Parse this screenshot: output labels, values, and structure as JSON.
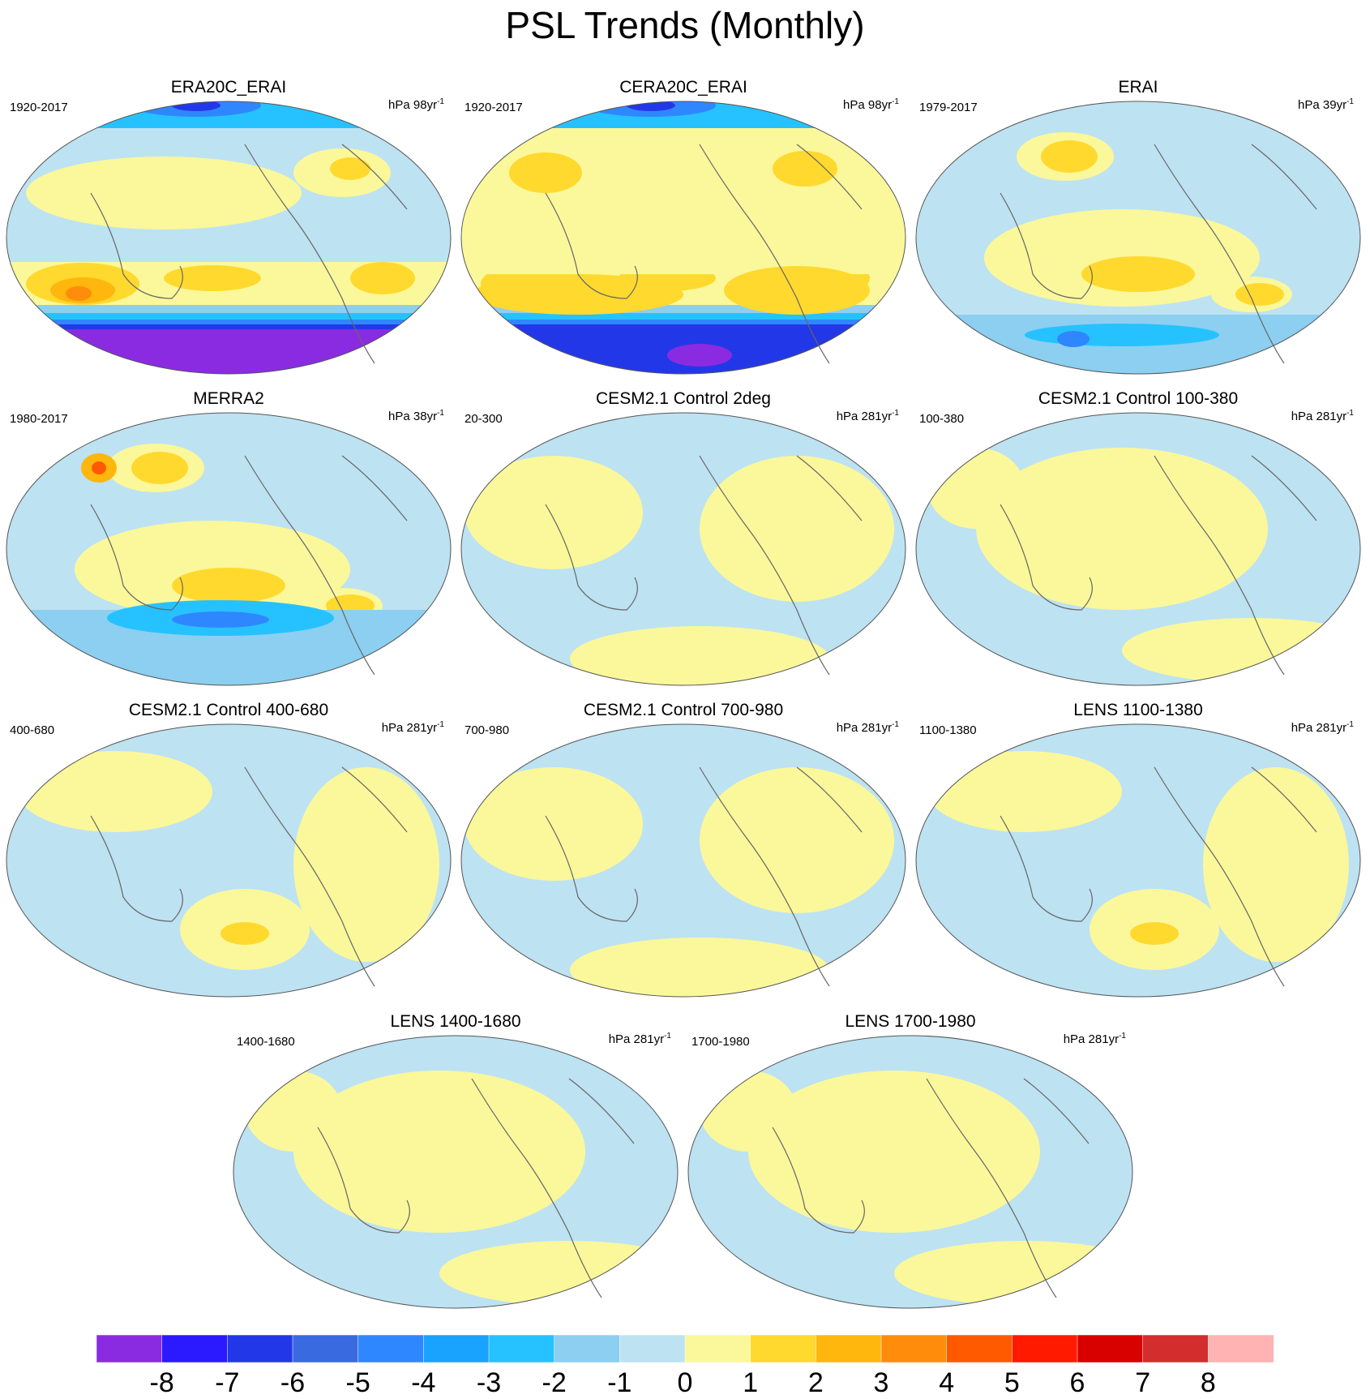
{
  "figure_title": "PSL Trends (Monthly)",
  "panels": [
    {
      "title": "ERA20C_ERAI",
      "period": "1920-2017",
      "units": "hPa 98yr",
      "units_exp": "-1",
      "pattern": "strong"
    },
    {
      "title": "CERA20C_ERAI",
      "period": "1920-2017",
      "units": "hPa 98yr",
      "units_exp": "-1",
      "pattern": "strong2"
    },
    {
      "title": "ERAI",
      "period": "1979-2017",
      "units": "hPa 39yr",
      "units_exp": "-1",
      "pattern": "erai"
    },
    {
      "title": "MERRA2",
      "period": "1980-2017",
      "units": "hPa 38yr",
      "units_exp": "-1",
      "pattern": "merra"
    },
    {
      "title": "CESM2.1 Control 2deg",
      "period": "20-300",
      "units": "hPa 281yr",
      "units_exp": "-1",
      "pattern": "weak"
    },
    {
      "title": "CESM2.1 Control 100-380",
      "period": "100-380",
      "units": "hPa 281yr",
      "units_exp": "-1",
      "pattern": "weak2"
    },
    {
      "title": "CESM2.1 Control 400-680",
      "period": "400-680",
      "units": "hPa 281yr",
      "units_exp": "-1",
      "pattern": "weak3"
    },
    {
      "title": "CESM2.1 Control 700-980",
      "period": "700-980",
      "units": "hPa 281yr",
      "units_exp": "-1",
      "pattern": "weak"
    },
    {
      "title": "LENS 1100-1380",
      "period": "1100-1380",
      "units": "hPa 281yr",
      "units_exp": "-1",
      "pattern": "weak3"
    },
    {
      "title": "LENS 1400-1680",
      "period": "1400-1680",
      "units": "hPa 281yr",
      "units_exp": "-1",
      "pattern": "weak2"
    },
    {
      "title": "LENS 1700-1980",
      "period": "1700-1980",
      "units": "hPa 281yr",
      "units_exp": "-1",
      "pattern": "weak2"
    }
  ],
  "colorbar": {
    "colors": [
      "#8a2be2",
      "#2b1aff",
      "#2238e8",
      "#3a6ae0",
      "#2f87ff",
      "#1aa2ff",
      "#26c2ff",
      "#8ccff0",
      "#bde2f2",
      "#fbf89b",
      "#ffd92e",
      "#ffb60d",
      "#ff8c0a",
      "#ff5a00",
      "#ff1a00",
      "#d90000",
      "#d42d2d",
      "#ffb3b3"
    ],
    "labels": [
      "-8",
      "-7",
      "-6",
      "-5",
      "-4",
      "-3",
      "-2",
      "-1",
      "0",
      "1",
      "2",
      "3",
      "4",
      "5",
      "6",
      "7",
      "8"
    ]
  }
}
